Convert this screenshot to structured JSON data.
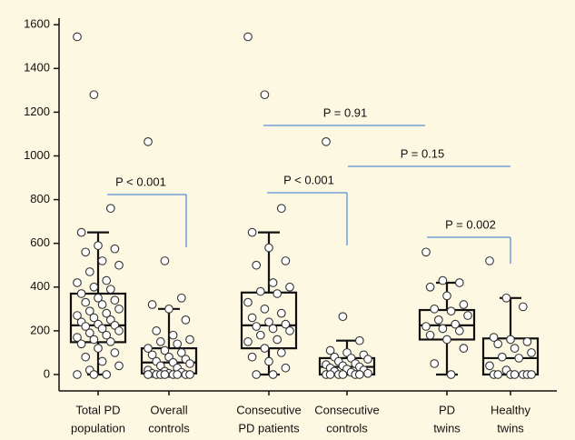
{
  "chart_data": {
    "type": "box",
    "categories": [
      [
        "Total PD",
        "population"
      ],
      [
        "Overall",
        "controls"
      ],
      [
        "Consecutive",
        "PD patients"
      ],
      [
        "Consecutive",
        "controls"
      ],
      [
        "PD",
        "twins"
      ],
      [
        "Healthy",
        "twins"
      ]
    ],
    "boxes": [
      {
        "whislo": 0,
        "q1": 148,
        "med": 225,
        "q3": 370,
        "whishi": 650
      },
      {
        "whislo": 0,
        "q1": 5,
        "med": 55,
        "q3": 120,
        "whishi": 300
      },
      {
        "whislo": 0,
        "q1": 120,
        "med": 225,
        "q3": 375,
        "whishi": 650
      },
      {
        "whislo": 0,
        "q1": 0,
        "med": 35,
        "q3": 75,
        "whishi": 155
      },
      {
        "whislo": 0,
        "q1": 160,
        "med": 225,
        "q3": 295,
        "whishi": 420
      },
      {
        "whislo": 0,
        "q1": 0,
        "med": 75,
        "q3": 165,
        "whishi": 350
      }
    ],
    "points": [
      [
        1545,
        1280,
        760,
        650,
        590,
        575,
        560,
        520,
        500,
        470,
        430,
        420,
        400,
        390,
        370,
        350,
        340,
        330,
        320,
        300,
        290,
        280,
        270,
        260,
        250,
        240,
        230,
        225,
        220,
        210,
        200,
        190,
        180,
        170,
        160,
        150,
        140,
        120,
        100,
        80,
        60,
        40,
        20,
        0,
        0,
        0
      ],
      [
        1065,
        520,
        350,
        320,
        300,
        250,
        200,
        180,
        160,
        150,
        140,
        120,
        110,
        100,
        90,
        80,
        70,
        60,
        55,
        50,
        40,
        30,
        20,
        15,
        10,
        5,
        5,
        0,
        0,
        0,
        0,
        0,
        0,
        0,
        0
      ],
      [
        1545,
        1280,
        760,
        650,
        580,
        520,
        500,
        420,
        400,
        380,
        370,
        330,
        300,
        280,
        260,
        240,
        230,
        220,
        210,
        200,
        180,
        160,
        150,
        120,
        100,
        80,
        60,
        30,
        0,
        0
      ],
      [
        1065,
        265,
        155,
        110,
        100,
        90,
        80,
        75,
        70,
        60,
        50,
        45,
        40,
        35,
        30,
        25,
        20,
        15,
        10,
        5,
        0,
        0,
        0,
        0,
        0,
        0
      ],
      [
        560,
        430,
        420,
        400,
        360,
        320,
        300,
        290,
        270,
        250,
        230,
        220,
        210,
        200,
        180,
        160,
        120,
        50,
        0
      ],
      [
        520,
        350,
        310,
        170,
        160,
        150,
        140,
        120,
        100,
        80,
        75,
        40,
        20,
        0,
        0,
        0,
        0,
        0,
        0,
        0
      ]
    ],
    "comparisons": [
      {
        "groups": [
          0,
          1
        ],
        "label": "P < 0.001"
      },
      {
        "groups": [
          2,
          3
        ],
        "label": "P < 0.001"
      },
      {
        "groups": [
          2,
          4
        ],
        "label": "P = 0.91"
      },
      {
        "groups": [
          3,
          5
        ],
        "label": "P = 0.15"
      },
      {
        "groups": [
          4,
          5
        ],
        "label": "P = 0.002"
      }
    ],
    "ylim": [
      -75,
      1630
    ],
    "yticks": [
      0,
      200,
      400,
      600,
      800,
      1000,
      1200,
      1400,
      1600
    ]
  }
}
